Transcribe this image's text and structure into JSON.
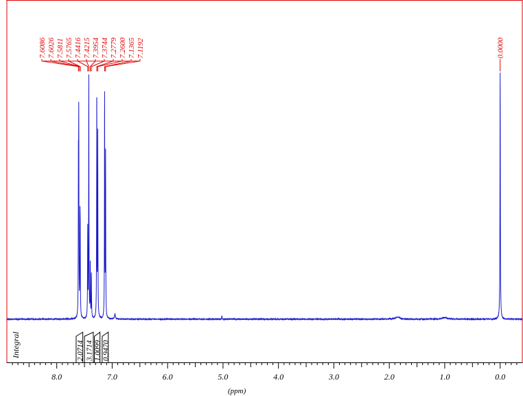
{
  "chart_data": {
    "type": "line",
    "title": "",
    "xlabel": "(ppm)",
    "ylabel": "",
    "xlim": [
      8.9,
      -0.4
    ],
    "ylim": [
      0,
      1.0
    ],
    "x_ticks": [
      8.0,
      7.0,
      6.0,
      5.0,
      4.0,
      3.0,
      2.0,
      1.0,
      0.0
    ],
    "x_tick_labels": [
      "8.0",
      "7.0",
      "6.0",
      "5.0",
      "4.0",
      "3.0",
      "2.0",
      "1.0",
      "0.0"
    ],
    "grid": false,
    "series": [
      {
        "peaks": [
          {
            "ppm": 7.6086,
            "height": 0.56
          },
          {
            "ppm": 7.6026,
            "height": 0.74
          },
          {
            "ppm": 7.5811,
            "height": 0.34
          },
          {
            "ppm": 7.5765,
            "height": 0.28
          },
          {
            "ppm": 7.4416,
            "height": 0.36
          },
          {
            "ppm": 7.4215,
            "height": 0.98
          },
          {
            "ppm": 7.3954,
            "height": 0.22
          },
          {
            "ppm": 7.3744,
            "height": 0.18
          },
          {
            "ppm": 7.2779,
            "height": 0.92
          },
          {
            "ppm": 7.26,
            "height": 0.74
          },
          {
            "ppm": 7.1365,
            "height": 0.91
          },
          {
            "ppm": 7.1192,
            "height": 0.66
          },
          {
            "ppm": 0.0,
            "height": 1.0
          }
        ]
      }
    ],
    "peak_labels": [
      {
        "label": "7.6086",
        "ppm": 7.6086
      },
      {
        "label": "7.6026",
        "ppm": 7.6026
      },
      {
        "label": "7.5811",
        "ppm": 7.5811
      },
      {
        "label": "7.5765",
        "ppm": 7.5765
      },
      {
        "label": "7.4416",
        "ppm": 7.4416
      },
      {
        "label": "7.4215",
        "ppm": 7.4215
      },
      {
        "label": "7.3954",
        "ppm": 7.3954
      },
      {
        "label": "7.3744",
        "ppm": 7.3744
      },
      {
        "label": "7.2779",
        "ppm": 7.2779
      },
      {
        "label": "7.2600",
        "ppm": 7.26
      },
      {
        "label": "7.1365",
        "ppm": 7.1365
      },
      {
        "label": "7.1192",
        "ppm": 7.1192
      }
    ],
    "tms_label": {
      "label": "0.0000",
      "ppm": 0.0
    },
    "integral_label": "Integral",
    "integrals": [
      {
        "label": "2.0714",
        "from": 7.65,
        "to": 7.53
      },
      {
        "label": "3.1714",
        "from": 7.5,
        "to": 7.34
      },
      {
        "label": "1.0099",
        "from": 7.32,
        "to": 7.22
      },
      {
        "label": "0.9470",
        "from": 7.18,
        "to": 7.07
      }
    ],
    "colors": {
      "spectrum": "#1a1acc",
      "peak_labels": "#e00000",
      "frame": "#e00000",
      "axis": "#000000",
      "integral_text": "#000000"
    }
  }
}
